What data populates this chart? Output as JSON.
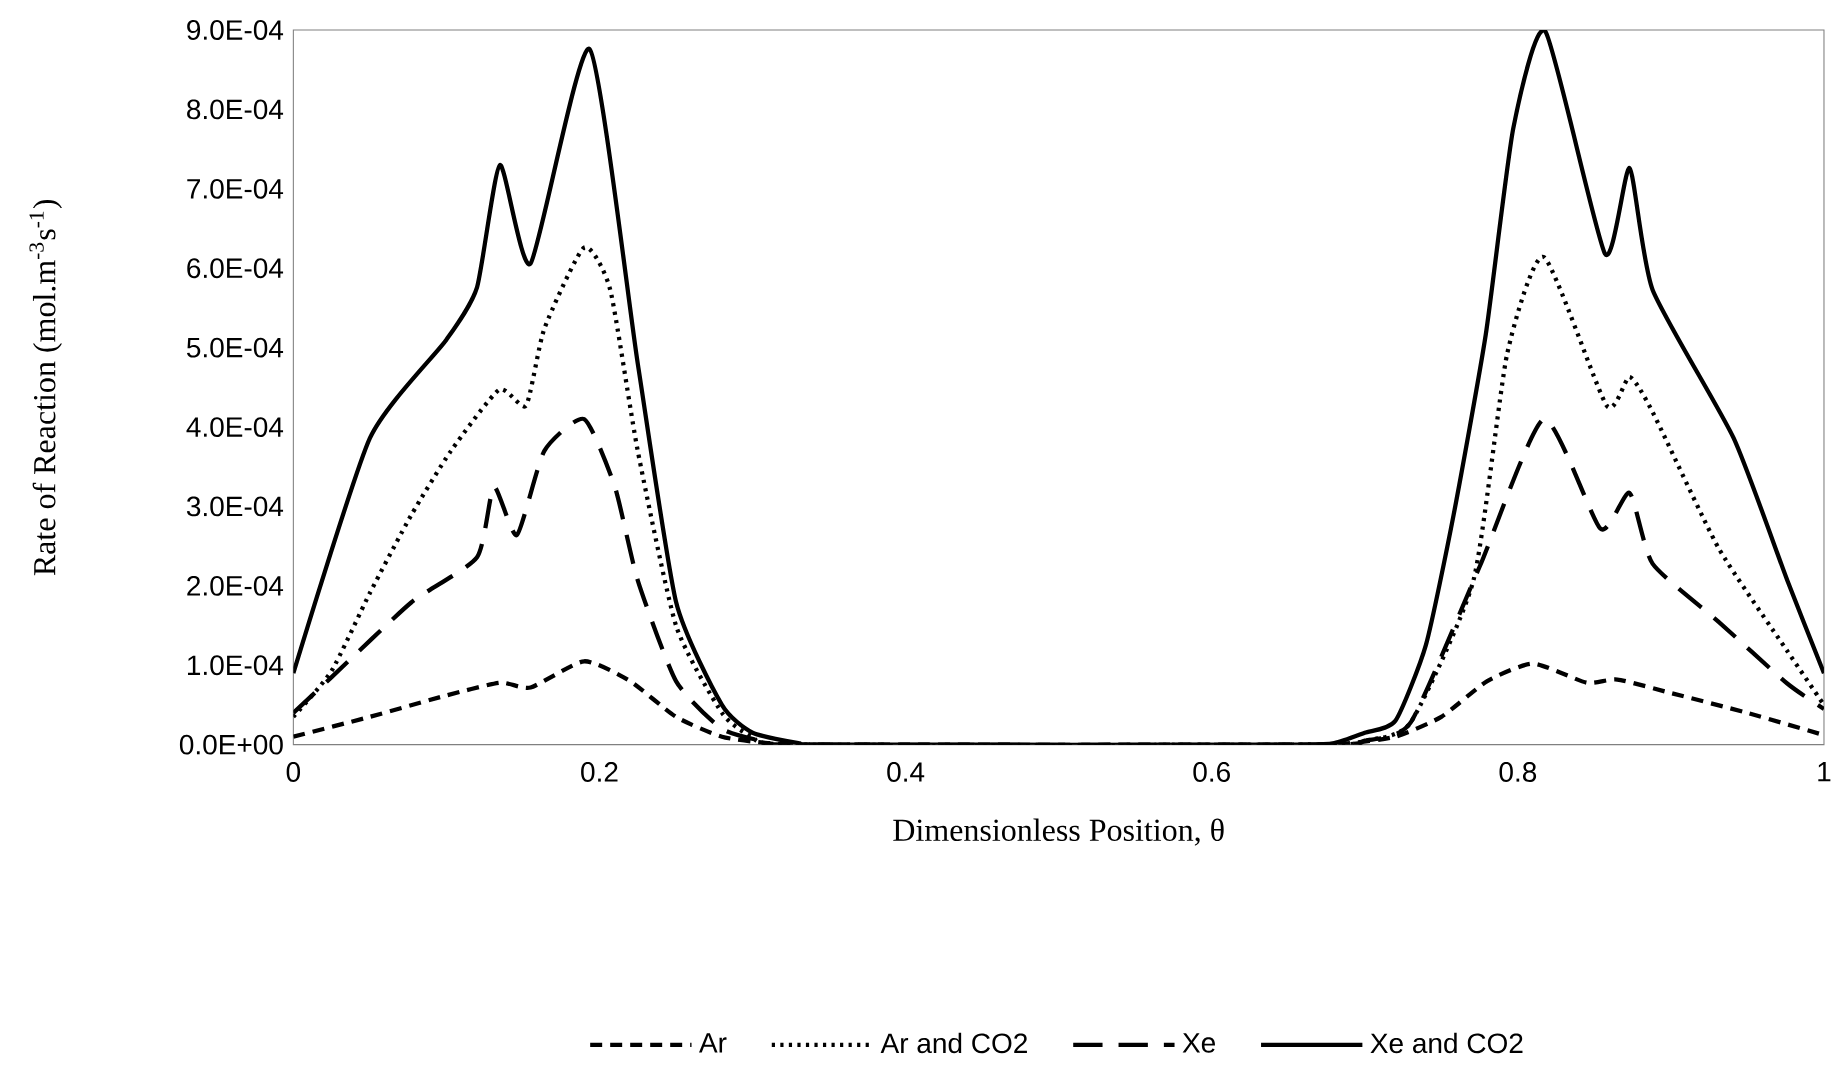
{
  "chart_data": {
    "type": "line",
    "xlabel": "Dimensionless Position, θ",
    "ylabel": "Rate of Reaction (mol.m$^{-3}$s$^{-1}$)",
    "xlim": [
      0,
      1
    ],
    "xticks": [
      0,
      0.2,
      0.4,
      0.6,
      0.8,
      1
    ],
    "ylim": [
      0,
      0.0009
    ],
    "yticks": [
      {
        "value": 0,
        "label": "0.0E+00"
      },
      {
        "value": 0.0001,
        "label": "1.0E-04"
      },
      {
        "value": 0.0002,
        "label": "2.0E-04"
      },
      {
        "value": 0.0003,
        "label": "3.0E-04"
      },
      {
        "value": 0.0004,
        "label": "4.0E-04"
      },
      {
        "value": 0.0005,
        "label": "5.0E-04"
      },
      {
        "value": 0.0006,
        "label": "6.0E-04"
      },
      {
        "value": 0.0007,
        "label": "7.0E-04"
      },
      {
        "value": 0.0008,
        "label": "8.0E-04"
      },
      {
        "value": 0.0009,
        "label": "9.0E-04"
      }
    ],
    "grid": false,
    "legend": "bottom",
    "marker": "none",
    "series": [
      {
        "name": "Ar",
        "color": "#000000",
        "line_style": "dashed",
        "x": [
          0,
          0.05,
          0.1,
          0.135,
          0.155,
          0.19,
          0.22,
          0.25,
          0.28,
          0.31,
          0.35,
          0.65,
          0.69,
          0.72,
          0.75,
          0.78,
          0.81,
          0.845,
          0.865,
          0.9,
          0.95,
          1.0
        ],
        "values": [
          1e-05,
          3.5e-05,
          6.2e-05,
          7.8e-05,
          7.2e-05,
          0.000105,
          8e-05,
          3.5e-05,
          1e-05,
          2e-06,
          0,
          0,
          2e-06,
          1e-05,
          3.5e-05,
          8e-05,
          0.000102,
          7.8e-05,
          8.2e-05,
          6.5e-05,
          4e-05,
          1.2e-05
        ]
      },
      {
        "name": "Ar and CO2",
        "color": "#000000",
        "line_style": "dotted",
        "x": [
          0,
          0.025,
          0.05,
          0.077,
          0.103,
          0.1345,
          0.152,
          0.164,
          0.19,
          0.207,
          0.225,
          0.25,
          0.28,
          0.3,
          0.33,
          0.67,
          0.7,
          0.73,
          0.771,
          0.793,
          0.817,
          0.858,
          0.873,
          0.888,
          0.931,
          0.976,
          1.0
        ],
        "values": [
          3.5e-05,
          9.3e-05,
          0.000191,
          0.000289,
          0.00037,
          0.000447,
          0.000427,
          0.000524,
          0.000626,
          0.000573,
          0.00037,
          0.00015,
          4e-05,
          1e-05,
          0,
          0,
          5e-06,
          2.8e-05,
          0.000207,
          0.000492,
          0.000614,
          0.000427,
          0.000463,
          0.000419,
          0.000248,
          0.000118,
          5e-05
        ]
      },
      {
        "name": "Xe",
        "color": "#000000",
        "line_style": "long dashed",
        "x": [
          0,
          0.025,
          0.077,
          0.12,
          0.131,
          0.146,
          0.164,
          0.19,
          0.21,
          0.225,
          0.25,
          0.28,
          0.31,
          0.33,
          0.67,
          0.7,
          0.73,
          0.775,
          0.817,
          0.854,
          0.873,
          0.888,
          0.931,
          0.976,
          1.0
        ],
        "values": [
          4e-05,
          8.5e-05,
          0.000179,
          0.000236,
          0.000325,
          0.000264,
          0.00037,
          0.00041,
          0.000325,
          0.000207,
          8e-05,
          2e-05,
          3e-06,
          0,
          0,
          5e-06,
          2.8e-05,
          0.000224,
          0.00041,
          0.000272,
          0.000317,
          0.000228,
          0.000155,
          7.7e-05,
          4.5e-05
        ]
      },
      {
        "name": "Xe and CO2",
        "color": "#000000",
        "line_style": "solid",
        "x": [
          0,
          0.05,
          0.1,
          0.12,
          0.135,
          0.155,
          0.1935,
          0.225,
          0.25,
          0.28,
          0.3,
          0.33,
          0.35,
          0.65,
          0.68,
          0.7,
          0.72,
          0.74,
          0.758,
          0.779,
          0.797,
          0.818,
          0.857,
          0.873,
          0.888,
          0.941,
          0.976,
          1.0
        ],
        "values": [
          9e-05,
          0.000386,
          0.00051,
          0.000576,
          0.00073,
          0.000606,
          0.000876,
          0.00048,
          0.00018,
          5e-05,
          1.5e-05,
          2e-06,
          0,
          0,
          2e-06,
          1.5e-05,
          3e-05,
          0.000126,
          0.000289,
          0.000516,
          0.000776,
          0.000898,
          0.000618,
          0.000726,
          0.000573,
          0.000386,
          0.000207,
          9e-05
        ]
      }
    ]
  }
}
